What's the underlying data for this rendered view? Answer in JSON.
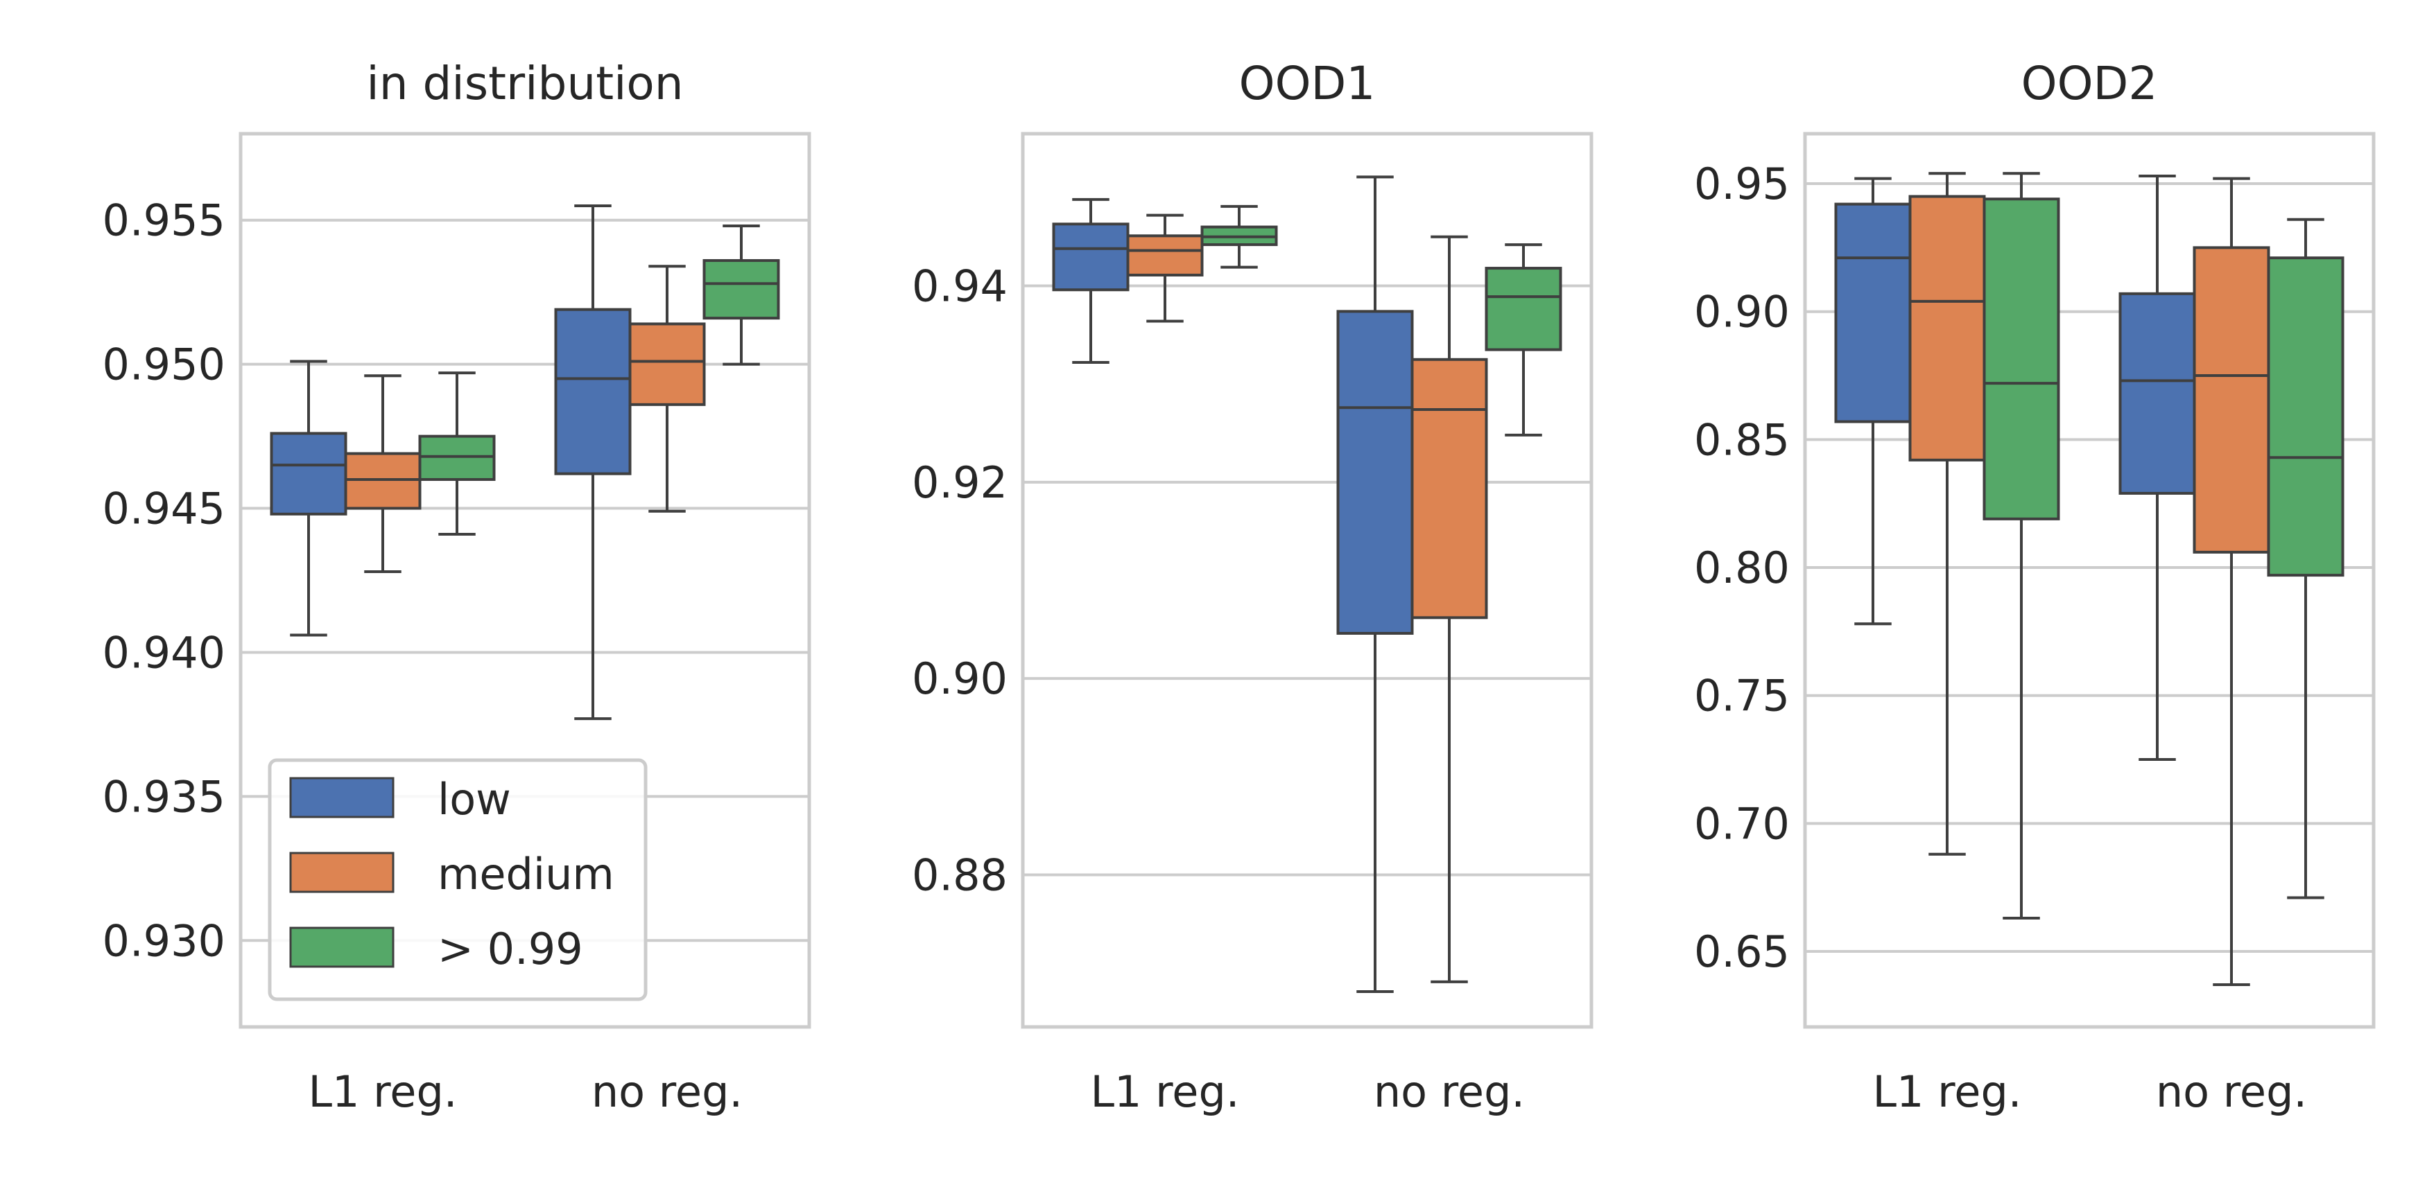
{
  "chart_data": [
    {
      "type": "box",
      "title": "in distribution",
      "categories": [
        "L1 reg.",
        "no reg."
      ],
      "ylim": [
        0.927,
        0.958
      ],
      "yticks": [
        0.93,
        0.935,
        0.94,
        0.945,
        0.95,
        0.955
      ],
      "ytick_labels": [
        "0.930",
        "0.935",
        "0.940",
        "0.945",
        "0.950",
        "0.955"
      ],
      "grid": true,
      "legend": {
        "placement": "lower-left",
        "entries": [
          "low",
          "medium",
          "> 0.99"
        ]
      },
      "series": [
        {
          "name": "low",
          "boxes": [
            {
              "whisker_low": 0.9406,
              "q1": 0.9448,
              "median": 0.9465,
              "q3": 0.9476,
              "whisker_high": 0.9501
            },
            {
              "whisker_low": 0.9377,
              "q1": 0.9462,
              "median": 0.9495,
              "q3": 0.9519,
              "whisker_high": 0.9555
            }
          ]
        },
        {
          "name": "medium",
          "boxes": [
            {
              "whisker_low": 0.9428,
              "q1": 0.945,
              "median": 0.946,
              "q3": 0.9469,
              "whisker_high": 0.9496
            },
            {
              "whisker_low": 0.9449,
              "q1": 0.9486,
              "median": 0.9501,
              "q3": 0.9514,
              "whisker_high": 0.9534
            }
          ]
        },
        {
          "name": "> 0.99",
          "boxes": [
            {
              "whisker_low": 0.9441,
              "q1": 0.946,
              "median": 0.9468,
              "q3": 0.9475,
              "whisker_high": 0.9497
            },
            {
              "whisker_low": 0.95,
              "q1": 0.9516,
              "median": 0.9528,
              "q3": 0.9536,
              "whisker_high": 0.9548
            }
          ]
        }
      ]
    },
    {
      "type": "box",
      "title": "OOD1",
      "categories": [
        "L1 reg.",
        "no reg."
      ],
      "ylim": [
        0.8645,
        0.9555
      ],
      "yticks": [
        0.88,
        0.9,
        0.92,
        0.94
      ],
      "ytick_labels": [
        "0.88",
        "0.90",
        "0.92",
        "0.94"
      ],
      "grid": true,
      "series": [
        {
          "name": "low",
          "boxes": [
            {
              "whisker_low": 0.9322,
              "q1": 0.9396,
              "median": 0.9438,
              "q3": 0.9463,
              "whisker_high": 0.9488
            },
            {
              "whisker_low": 0.8681,
              "q1": 0.9046,
              "median": 0.9276,
              "q3": 0.9374,
              "whisker_high": 0.9511
            }
          ]
        },
        {
          "name": "medium",
          "boxes": [
            {
              "whisker_low": 0.9364,
              "q1": 0.9411,
              "median": 0.9436,
              "q3": 0.9451,
              "whisker_high": 0.9472
            },
            {
              "whisker_low": 0.8691,
              "q1": 0.9062,
              "median": 0.9274,
              "q3": 0.9325,
              "whisker_high": 0.945
            }
          ]
        },
        {
          "name": "> 0.99",
          "boxes": [
            {
              "whisker_low": 0.9419,
              "q1": 0.9442,
              "median": 0.945,
              "q3": 0.946,
              "whisker_high": 0.9481
            },
            {
              "whisker_low": 0.9248,
              "q1": 0.9335,
              "median": 0.9389,
              "q3": 0.9418,
              "whisker_high": 0.9442
            }
          ]
        }
      ]
    },
    {
      "type": "box",
      "title": "OOD2",
      "categories": [
        "L1 reg.",
        "no reg."
      ],
      "ylim": [
        0.6205,
        0.9695
      ],
      "yticks": [
        0.65,
        0.7,
        0.75,
        0.8,
        0.85,
        0.9,
        0.95
      ],
      "ytick_labels": [
        "0.65",
        "0.70",
        "0.75",
        "0.80",
        "0.85",
        "0.90",
        "0.95"
      ],
      "grid": true,
      "series": [
        {
          "name": "low",
          "boxes": [
            {
              "whisker_low": 0.778,
              "q1": 0.857,
              "median": 0.921,
              "q3": 0.942,
              "whisker_high": 0.952
            },
            {
              "whisker_low": 0.725,
              "q1": 0.829,
              "median": 0.873,
              "q3": 0.907,
              "whisker_high": 0.953
            }
          ]
        },
        {
          "name": "medium",
          "boxes": [
            {
              "whisker_low": 0.688,
              "q1": 0.842,
              "median": 0.904,
              "q3": 0.945,
              "whisker_high": 0.954
            },
            {
              "whisker_low": 0.637,
              "q1": 0.806,
              "median": 0.875,
              "q3": 0.925,
              "whisker_high": 0.952
            }
          ]
        },
        {
          "name": "> 0.99",
          "boxes": [
            {
              "whisker_low": 0.663,
              "q1": 0.819,
              "median": 0.872,
              "q3": 0.944,
              "whisker_high": 0.954
            },
            {
              "whisker_low": 0.671,
              "q1": 0.797,
              "median": 0.843,
              "q3": 0.921,
              "whisker_high": 0.936
            }
          ]
        }
      ]
    }
  ],
  "colors": {
    "low": "#4c72b0",
    "medium": "#dd8452",
    "> 0.99": "#55a868",
    "edge": "#3f3f3f",
    "grid": "#cccccc",
    "frame": "#cccccc"
  }
}
